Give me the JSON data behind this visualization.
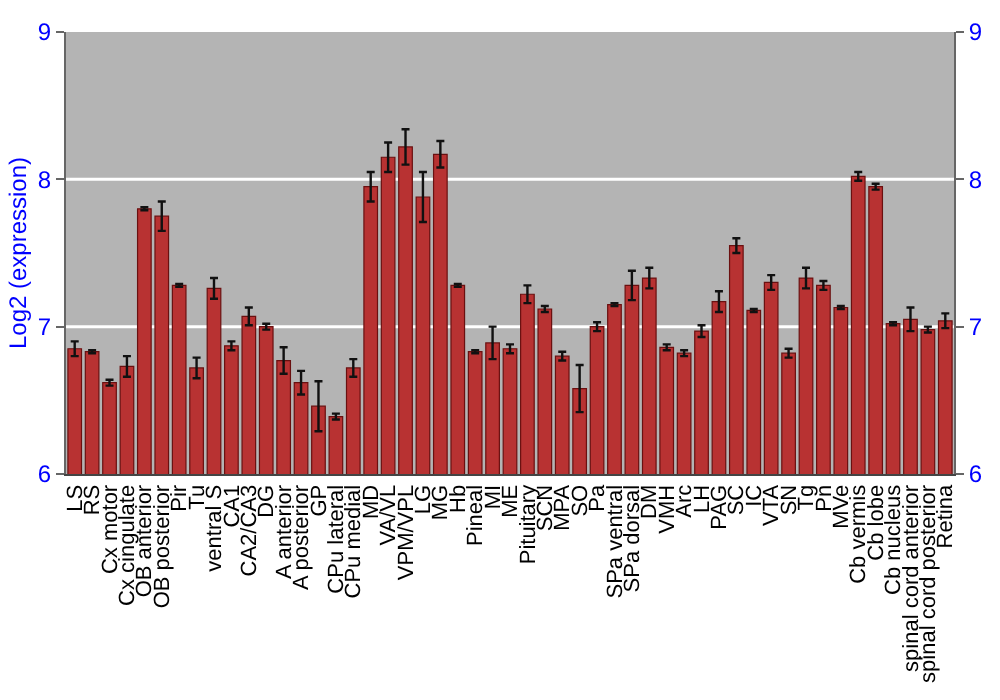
{
  "chart_data": {
    "type": "bar",
    "ylabel": "Log2 (expression)",
    "categories": [
      "LS",
      "RS",
      "Cx motor",
      "Cx cingulate",
      "OB anterior",
      "OB posterior",
      "Pir",
      "Tu",
      "ventral S",
      "CA1",
      "CA2/CA3",
      "DG",
      "A anterior",
      "A posterior",
      "GP",
      "CPu lateral",
      "CPu medial",
      "MD",
      "VA/VL",
      "VPM/VPL",
      "LG",
      "MG",
      "Hb",
      "Pineal",
      "MI",
      "ME",
      "Pituitary",
      "SCN",
      "MPA",
      "SO",
      "Pa",
      "SPa ventral",
      "SPa dorsal",
      "DM",
      "VMH",
      "Arc",
      "LH",
      "PAG",
      "SC",
      "IC",
      "VTA",
      "SN",
      "Tg",
      "Pn",
      "MVe",
      "Cb vermis",
      "Cb lobe",
      "Cb nucleus",
      "spinal cord anterior",
      "spinal cord posterior",
      "Retina"
    ],
    "values": [
      6.85,
      6.83,
      6.62,
      6.73,
      7.8,
      7.75,
      7.28,
      6.72,
      7.26,
      6.87,
      7.07,
      7.0,
      6.77,
      6.62,
      6.46,
      6.39,
      6.72,
      7.95,
      8.15,
      8.22,
      7.88,
      8.17,
      7.28,
      6.83,
      6.89,
      6.85,
      7.22,
      7.12,
      6.8,
      6.58,
      7.0,
      7.15,
      7.28,
      7.33,
      6.86,
      6.82,
      6.97,
      7.17,
      7.55,
      7.11,
      7.3,
      6.82,
      7.33,
      7.28,
      7.13,
      8.02,
      7.95,
      7.02,
      7.05,
      6.98,
      7.04
    ],
    "errors": [
      0.05,
      0.01,
      0.02,
      0.07,
      0.01,
      0.1,
      0.01,
      0.07,
      0.07,
      0.03,
      0.06,
      0.02,
      0.09,
      0.08,
      0.17,
      0.02,
      0.06,
      0.1,
      0.1,
      0.12,
      0.17,
      0.09,
      0.01,
      0.01,
      0.11,
      0.03,
      0.06,
      0.02,
      0.03,
      0.16,
      0.03,
      0.01,
      0.1,
      0.07,
      0.02,
      0.02,
      0.04,
      0.07,
      0.05,
      0.01,
      0.05,
      0.03,
      0.07,
      0.03,
      0.01,
      0.03,
      0.02,
      0.01,
      0.08,
      0.02,
      0.05
    ],
    "color": "#b83232",
    "ylim": [
      6,
      9
    ],
    "yticks": [
      6,
      7,
      8,
      9
    ],
    "y2lim": [
      6,
      9
    ],
    "y2ticks": [
      6,
      7,
      8,
      9
    ],
    "grid": "y",
    "legend": false
  }
}
